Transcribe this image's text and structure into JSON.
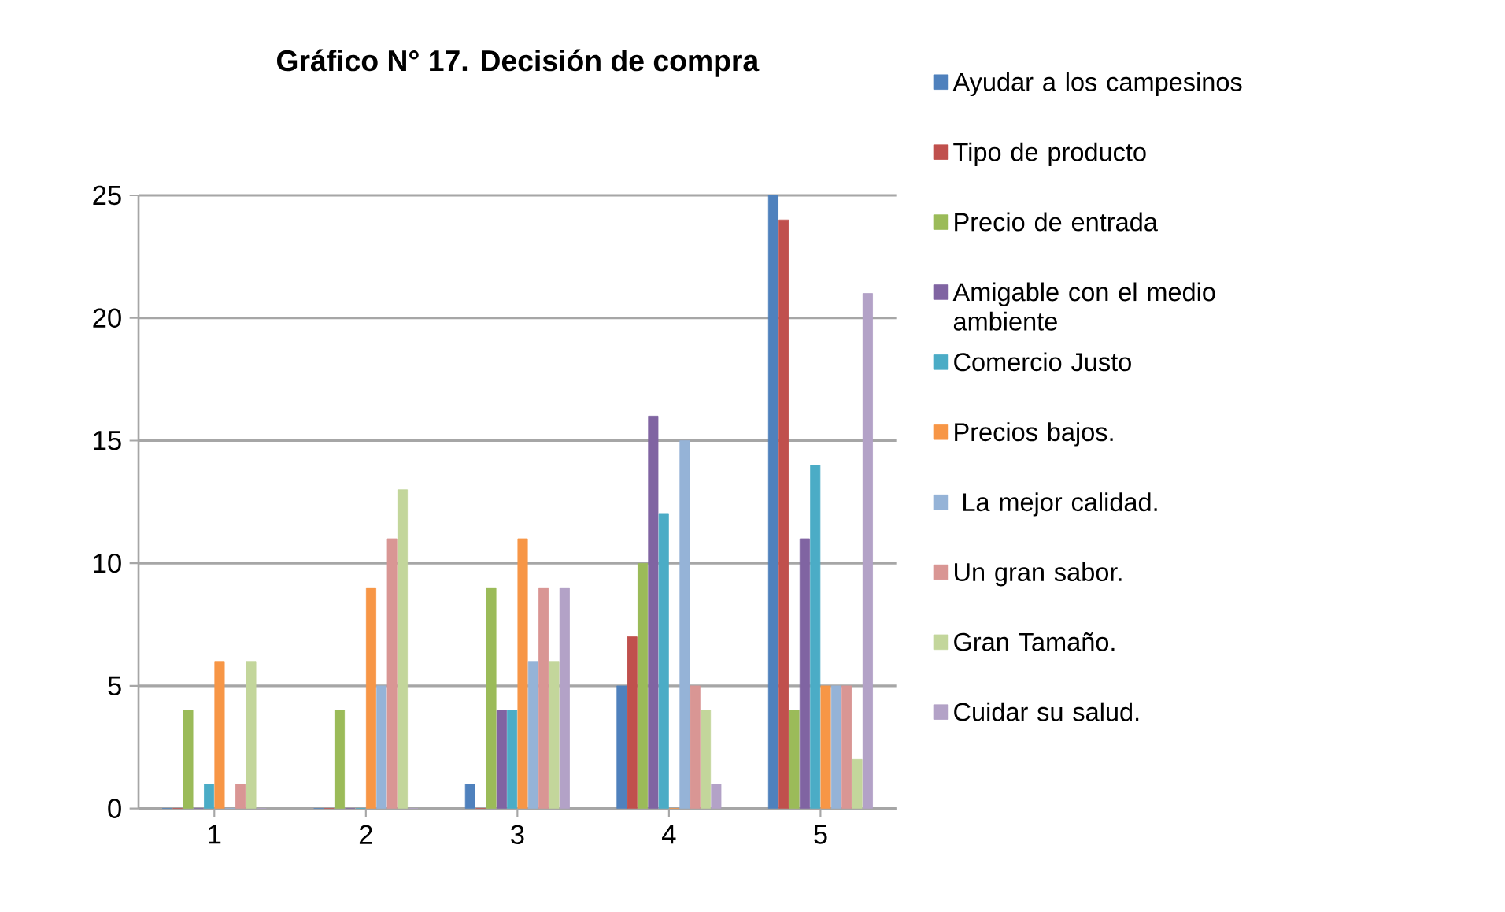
{
  "chart_data": {
    "type": "bar",
    "title": "Gráfico N° 17. Decisión de compra",
    "categories": [
      "1",
      "2",
      "3",
      "4",
      "5"
    ],
    "series": [
      {
        "name": "Ayudar a los campesinos",
        "color": "#4f81bd",
        "values": [
          0,
          0,
          1,
          5,
          25
        ]
      },
      {
        "name": "Tipo de producto",
        "color": "#c0504d",
        "values": [
          0,
          0,
          0,
          7,
          24
        ]
      },
      {
        "name": "Precio de entrada",
        "color": "#9bbb59",
        "values": [
          4,
          4,
          9,
          10,
          4
        ]
      },
      {
        "name": "Amigable con el medio ambiente",
        "color": "#8064a2",
        "values": [
          0,
          0,
          4,
          16,
          11
        ]
      },
      {
        "name": "Comercio Justo",
        "color": "#4bacc6",
        "values": [
          1,
          0,
          4,
          12,
          14
        ]
      },
      {
        "name": "Precios bajos.",
        "color": "#f79646",
        "values": [
          6,
          9,
          11,
          0,
          5
        ]
      },
      {
        "name": " La mejor calidad.",
        "color": "#95b3d7",
        "values": [
          0,
          5,
          6,
          15,
          5
        ]
      },
      {
        "name": "Un gran sabor.",
        "color": "#d99694",
        "values": [
          1,
          11,
          9,
          5,
          5
        ]
      },
      {
        "name": "Gran Tamaño.",
        "color": "#c3d69b",
        "values": [
          6,
          13,
          6,
          4,
          2
        ]
      },
      {
        "name": "Cuidar su salud.",
        "color": "#b3a2c7",
        "values": [
          0,
          0,
          9,
          1,
          21
        ]
      }
    ],
    "ylim": [
      0,
      25
    ],
    "yticks": [
      0,
      5,
      10,
      15,
      20,
      25
    ],
    "grid": "y",
    "legend": "right"
  }
}
